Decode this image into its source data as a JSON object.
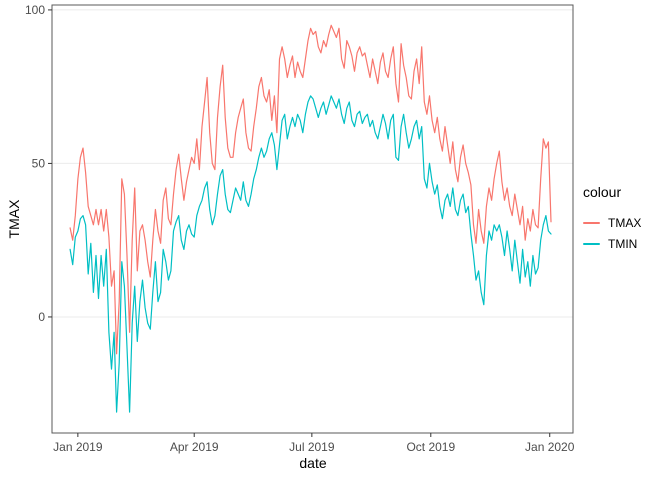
{
  "chart_data": {
    "type": "line",
    "title": "",
    "xlabel": "date",
    "ylabel": "TMAX",
    "legend_title": "colour",
    "legend_position": "right",
    "grid": "horizontal-major-only",
    "x_unit": "days since 2019-01-01",
    "xlim": [
      -20,
      383
    ],
    "ylim": [
      -37.8,
      101.6
    ],
    "background_color": "#ffffff",
    "panel_border_color": "#595959",
    "grid_color": "#ebebeb",
    "tick_color": "#333333",
    "tick_label_color": "#4d4d4d",
    "xticks": [
      {
        "value": 0,
        "label": "Jan 2019"
      },
      {
        "value": 90,
        "label": "Apr 2019"
      },
      {
        "value": 181,
        "label": "Jul 2019"
      },
      {
        "value": 273,
        "label": "Oct 2019"
      },
      {
        "value": 365,
        "label": "Jan 2020"
      }
    ],
    "yticks": [
      {
        "value": 0,
        "label": "0"
      },
      {
        "value": 50,
        "label": "50"
      },
      {
        "value": 100,
        "label": "100"
      }
    ],
    "x": [
      -6,
      -4,
      -2,
      0,
      2,
      4,
      6,
      8,
      10,
      12,
      14,
      16,
      18,
      20,
      22,
      24,
      26,
      28,
      30,
      32,
      34,
      36,
      38,
      40,
      42,
      44,
      46,
      48,
      50,
      52,
      54,
      56,
      58,
      60,
      62,
      64,
      66,
      68,
      70,
      72,
      74,
      76,
      78,
      80,
      82,
      84,
      86,
      88,
      90,
      92,
      94,
      96,
      98,
      100,
      102,
      104,
      106,
      108,
      110,
      112,
      114,
      116,
      118,
      120,
      122,
      124,
      126,
      128,
      130,
      132,
      134,
      136,
      138,
      140,
      142,
      144,
      146,
      148,
      150,
      152,
      154,
      156,
      158,
      160,
      162,
      164,
      166,
      168,
      170,
      172,
      174,
      176,
      178,
      180,
      182,
      184,
      186,
      188,
      190,
      192,
      194,
      196,
      198,
      200,
      202,
      204,
      206,
      208,
      210,
      212,
      214,
      216,
      218,
      220,
      222,
      224,
      226,
      228,
      230,
      232,
      234,
      236,
      238,
      240,
      242,
      244,
      246,
      248,
      250,
      252,
      254,
      256,
      258,
      260,
      262,
      264,
      266,
      268,
      270,
      272,
      274,
      276,
      278,
      280,
      282,
      284,
      286,
      288,
      290,
      292,
      294,
      296,
      298,
      300,
      302,
      304,
      306,
      308,
      310,
      312,
      314,
      316,
      318,
      320,
      322,
      324,
      326,
      328,
      330,
      332,
      334,
      336,
      338,
      340,
      342,
      344,
      346,
      348,
      350,
      352,
      354,
      356,
      358,
      360,
      362,
      364,
      366
    ],
    "series": [
      {
        "name": "TMAX",
        "color": "#F8766D",
        "values": [
          29,
          25,
          33,
          45,
          52,
          55,
          47,
          36,
          33,
          30,
          35,
          30,
          35,
          28,
          35,
          26,
          10,
          15,
          -12,
          5,
          45,
          40,
          20,
          -5,
          25,
          42,
          15,
          28,
          30,
          25,
          18,
          13,
          25,
          35,
          28,
          24,
          38,
          42,
          32,
          30,
          40,
          48,
          53,
          45,
          38,
          44,
          48,
          52,
          50,
          58,
          48,
          62,
          70,
          78,
          60,
          50,
          48,
          65,
          75,
          82,
          65,
          55,
          52,
          52,
          60,
          65,
          68,
          71,
          60,
          55,
          54,
          62,
          68,
          75,
          78,
          72,
          70,
          74,
          64,
          72,
          60,
          84,
          88,
          84,
          78,
          82,
          85,
          78,
          83,
          80,
          78,
          84,
          90,
          94,
          92,
          93,
          88,
          86,
          90,
          88,
          92,
          95,
          93,
          91,
          94,
          84,
          81,
          90,
          88,
          85,
          80,
          86,
          88,
          85,
          86,
          82,
          78,
          84,
          80,
          76,
          83,
          86,
          80,
          78,
          84,
          88,
          76,
          70,
          89,
          82,
          78,
          72,
          71,
          80,
          84,
          76,
          88,
          70,
          66,
          72,
          64,
          60,
          65,
          58,
          54,
          62,
          56,
          50,
          57,
          48,
          44,
          52,
          56,
          50,
          47,
          43,
          30,
          24,
          35,
          28,
          24,
          36,
          42,
          38,
          45,
          50,
          54,
          44,
          38,
          42,
          36,
          33,
          40,
          35,
          30,
          36,
          25,
          32,
          28,
          35,
          30,
          29,
          45,
          58,
          55,
          57,
          31
        ]
      },
      {
        "name": "TMIN",
        "color": "#00BFC4",
        "values": [
          22,
          17,
          26,
          28,
          32,
          33,
          30,
          14,
          24,
          8,
          20,
          6,
          20,
          10,
          22,
          -5,
          -17,
          -5,
          -31,
          -15,
          18,
          10,
          -10,
          -31,
          -2,
          10,
          -8,
          5,
          12,
          3,
          -2,
          -4,
          8,
          18,
          5,
          8,
          22,
          18,
          12,
          15,
          28,
          31,
          33,
          25,
          22,
          28,
          30,
          27,
          26,
          33,
          36,
          38,
          42,
          44,
          35,
          30,
          33,
          40,
          46,
          48,
          40,
          35,
          34,
          38,
          42,
          40,
          38,
          44,
          38,
          36,
          40,
          45,
          48,
          52,
          55,
          52,
          54,
          58,
          60,
          56,
          48,
          56,
          64,
          66,
          58,
          62,
          65,
          62,
          66,
          64,
          60,
          66,
          70,
          72,
          71,
          68,
          65,
          68,
          70,
          66,
          69,
          72,
          70,
          68,
          71,
          66,
          63,
          68,
          70,
          64,
          62,
          66,
          67,
          63,
          65,
          66,
          62,
          64,
          60,
          58,
          62,
          66,
          63,
          58,
          64,
          66,
          52,
          51,
          62,
          66,
          60,
          55,
          58,
          62,
          64,
          58,
          62,
          45,
          42,
          50,
          44,
          40,
          43,
          36,
          32,
          38,
          40,
          36,
          42,
          35,
          33,
          38,
          40,
          34,
          36,
          27,
          20,
          12,
          15,
          8,
          4,
          20,
          28,
          25,
          30,
          28,
          30,
          26,
          20,
          28,
          22,
          15,
          25,
          18,
          11,
          22,
          13,
          18,
          10,
          20,
          14,
          16,
          25,
          30,
          33,
          28,
          27
        ]
      }
    ]
  }
}
